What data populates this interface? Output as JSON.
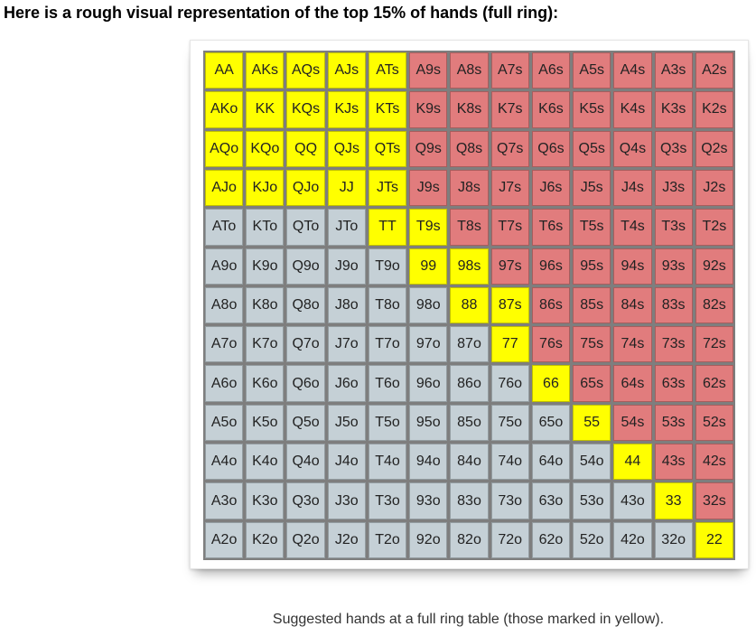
{
  "heading": "Here is a rough visual representation of the top 15% of hands (full ring):",
  "caption": "Suggested hands at a full ring table (those marked in yellow).",
  "colors": {
    "selected": "#ffff00",
    "suited": "#e17c7d",
    "offsuit": "#c5d0d6"
  },
  "rows": [
    {
      "cells": [
        {
          "label": "AA",
          "color": "yellow"
        },
        {
          "label": "AKs",
          "color": "yellow"
        },
        {
          "label": "AQs",
          "color": "yellow"
        },
        {
          "label": "AJs",
          "color": "yellow"
        },
        {
          "label": "ATs",
          "color": "yellow"
        },
        {
          "label": "A9s",
          "color": "pink"
        },
        {
          "label": "A8s",
          "color": "pink"
        },
        {
          "label": "A7s",
          "color": "pink"
        },
        {
          "label": "A6s",
          "color": "pink"
        },
        {
          "label": "A5s",
          "color": "pink"
        },
        {
          "label": "A4s",
          "color": "pink"
        },
        {
          "label": "A3s",
          "color": "pink"
        },
        {
          "label": "A2s",
          "color": "pink"
        }
      ]
    },
    {
      "cells": [
        {
          "label": "AKo",
          "color": "yellow"
        },
        {
          "label": "KK",
          "color": "yellow"
        },
        {
          "label": "KQs",
          "color": "yellow"
        },
        {
          "label": "KJs",
          "color": "yellow"
        },
        {
          "label": "KTs",
          "color": "yellow"
        },
        {
          "label": "K9s",
          "color": "pink"
        },
        {
          "label": "K8s",
          "color": "pink"
        },
        {
          "label": "K7s",
          "color": "pink"
        },
        {
          "label": "K6s",
          "color": "pink"
        },
        {
          "label": "K5s",
          "color": "pink"
        },
        {
          "label": "K4s",
          "color": "pink"
        },
        {
          "label": "K3s",
          "color": "pink"
        },
        {
          "label": "K2s",
          "color": "pink"
        }
      ]
    },
    {
      "cells": [
        {
          "label": "AQo",
          "color": "yellow"
        },
        {
          "label": "KQo",
          "color": "yellow"
        },
        {
          "label": "QQ",
          "color": "yellow"
        },
        {
          "label": "QJs",
          "color": "yellow"
        },
        {
          "label": "QTs",
          "color": "yellow"
        },
        {
          "label": "Q9s",
          "color": "pink"
        },
        {
          "label": "Q8s",
          "color": "pink"
        },
        {
          "label": "Q7s",
          "color": "pink"
        },
        {
          "label": "Q6s",
          "color": "pink"
        },
        {
          "label": "Q5s",
          "color": "pink"
        },
        {
          "label": "Q4s",
          "color": "pink"
        },
        {
          "label": "Q3s",
          "color": "pink"
        },
        {
          "label": "Q2s",
          "color": "pink"
        }
      ]
    },
    {
      "cells": [
        {
          "label": "AJo",
          "color": "yellow"
        },
        {
          "label": "KJo",
          "color": "yellow"
        },
        {
          "label": "QJo",
          "color": "yellow"
        },
        {
          "label": "JJ",
          "color": "yellow"
        },
        {
          "label": "JTs",
          "color": "yellow"
        },
        {
          "label": "J9s",
          "color": "pink"
        },
        {
          "label": "J8s",
          "color": "pink"
        },
        {
          "label": "J7s",
          "color": "pink"
        },
        {
          "label": "J6s",
          "color": "pink"
        },
        {
          "label": "J5s",
          "color": "pink"
        },
        {
          "label": "J4s",
          "color": "pink"
        },
        {
          "label": "J3s",
          "color": "pink"
        },
        {
          "label": "J2s",
          "color": "pink"
        }
      ]
    },
    {
      "cells": [
        {
          "label": "ATo",
          "color": "gray"
        },
        {
          "label": "KTo",
          "color": "gray"
        },
        {
          "label": "QTo",
          "color": "gray"
        },
        {
          "label": "JTo",
          "color": "gray"
        },
        {
          "label": "TT",
          "color": "yellow"
        },
        {
          "label": "T9s",
          "color": "yellow"
        },
        {
          "label": "T8s",
          "color": "pink"
        },
        {
          "label": "T7s",
          "color": "pink"
        },
        {
          "label": "T6s",
          "color": "pink"
        },
        {
          "label": "T5s",
          "color": "pink"
        },
        {
          "label": "T4s",
          "color": "pink"
        },
        {
          "label": "T3s",
          "color": "pink"
        },
        {
          "label": "T2s",
          "color": "pink"
        }
      ]
    },
    {
      "cells": [
        {
          "label": "A9o",
          "color": "gray"
        },
        {
          "label": "K9o",
          "color": "gray"
        },
        {
          "label": "Q9o",
          "color": "gray"
        },
        {
          "label": "J9o",
          "color": "gray"
        },
        {
          "label": "T9o",
          "color": "gray"
        },
        {
          "label": "99",
          "color": "yellow"
        },
        {
          "label": "98s",
          "color": "yellow"
        },
        {
          "label": "97s",
          "color": "pink"
        },
        {
          "label": "96s",
          "color": "pink"
        },
        {
          "label": "95s",
          "color": "pink"
        },
        {
          "label": "94s",
          "color": "pink"
        },
        {
          "label": "93s",
          "color": "pink"
        },
        {
          "label": "92s",
          "color": "pink"
        }
      ]
    },
    {
      "cells": [
        {
          "label": "A8o",
          "color": "gray"
        },
        {
          "label": "K8o",
          "color": "gray"
        },
        {
          "label": "Q8o",
          "color": "gray"
        },
        {
          "label": "J8o",
          "color": "gray"
        },
        {
          "label": "T8o",
          "color": "gray"
        },
        {
          "label": "98o",
          "color": "gray"
        },
        {
          "label": "88",
          "color": "yellow"
        },
        {
          "label": "87s",
          "color": "yellow"
        },
        {
          "label": "86s",
          "color": "pink"
        },
        {
          "label": "85s",
          "color": "pink"
        },
        {
          "label": "84s",
          "color": "pink"
        },
        {
          "label": "83s",
          "color": "pink"
        },
        {
          "label": "82s",
          "color": "pink"
        }
      ]
    },
    {
      "cells": [
        {
          "label": "A7o",
          "color": "gray"
        },
        {
          "label": "K7o",
          "color": "gray"
        },
        {
          "label": "Q7o",
          "color": "gray"
        },
        {
          "label": "J7o",
          "color": "gray"
        },
        {
          "label": "T7o",
          "color": "gray"
        },
        {
          "label": "97o",
          "color": "gray"
        },
        {
          "label": "87o",
          "color": "gray"
        },
        {
          "label": "77",
          "color": "yellow"
        },
        {
          "label": "76s",
          "color": "pink"
        },
        {
          "label": "75s",
          "color": "pink"
        },
        {
          "label": "74s",
          "color": "pink"
        },
        {
          "label": "73s",
          "color": "pink"
        },
        {
          "label": "72s",
          "color": "pink"
        }
      ]
    },
    {
      "cells": [
        {
          "label": "A6o",
          "color": "gray"
        },
        {
          "label": "K6o",
          "color": "gray"
        },
        {
          "label": "Q6o",
          "color": "gray"
        },
        {
          "label": "J6o",
          "color": "gray"
        },
        {
          "label": "T6o",
          "color": "gray"
        },
        {
          "label": "96o",
          "color": "gray"
        },
        {
          "label": "86o",
          "color": "gray"
        },
        {
          "label": "76o",
          "color": "gray"
        },
        {
          "label": "66",
          "color": "yellow"
        },
        {
          "label": "65s",
          "color": "pink"
        },
        {
          "label": "64s",
          "color": "pink"
        },
        {
          "label": "63s",
          "color": "pink"
        },
        {
          "label": "62s",
          "color": "pink"
        }
      ]
    },
    {
      "cells": [
        {
          "label": "A5o",
          "color": "gray"
        },
        {
          "label": "K5o",
          "color": "gray"
        },
        {
          "label": "Q5o",
          "color": "gray"
        },
        {
          "label": "J5o",
          "color": "gray"
        },
        {
          "label": "T5o",
          "color": "gray"
        },
        {
          "label": "95o",
          "color": "gray"
        },
        {
          "label": "85o",
          "color": "gray"
        },
        {
          "label": "75o",
          "color": "gray"
        },
        {
          "label": "65o",
          "color": "gray"
        },
        {
          "label": "55",
          "color": "yellow"
        },
        {
          "label": "54s",
          "color": "pink"
        },
        {
          "label": "53s",
          "color": "pink"
        },
        {
          "label": "52s",
          "color": "pink"
        }
      ]
    },
    {
      "cells": [
        {
          "label": "A4o",
          "color": "gray"
        },
        {
          "label": "K4o",
          "color": "gray"
        },
        {
          "label": "Q4o",
          "color": "gray"
        },
        {
          "label": "J4o",
          "color": "gray"
        },
        {
          "label": "T4o",
          "color": "gray"
        },
        {
          "label": "94o",
          "color": "gray"
        },
        {
          "label": "84o",
          "color": "gray"
        },
        {
          "label": "74o",
          "color": "gray"
        },
        {
          "label": "64o",
          "color": "gray"
        },
        {
          "label": "54o",
          "color": "gray"
        },
        {
          "label": "44",
          "color": "yellow"
        },
        {
          "label": "43s",
          "color": "pink"
        },
        {
          "label": "42s",
          "color": "pink"
        }
      ]
    },
    {
      "cells": [
        {
          "label": "A3o",
          "color": "gray"
        },
        {
          "label": "K3o",
          "color": "gray"
        },
        {
          "label": "Q3o",
          "color": "gray"
        },
        {
          "label": "J3o",
          "color": "gray"
        },
        {
          "label": "T3o",
          "color": "gray"
        },
        {
          "label": "93o",
          "color": "gray"
        },
        {
          "label": "83o",
          "color": "gray"
        },
        {
          "label": "73o",
          "color": "gray"
        },
        {
          "label": "63o",
          "color": "gray"
        },
        {
          "label": "53o",
          "color": "gray"
        },
        {
          "label": "43o",
          "color": "gray"
        },
        {
          "label": "33",
          "color": "yellow"
        },
        {
          "label": "32s",
          "color": "pink"
        }
      ]
    },
    {
      "cells": [
        {
          "label": "A2o",
          "color": "gray"
        },
        {
          "label": "K2o",
          "color": "gray"
        },
        {
          "label": "Q2o",
          "color": "gray"
        },
        {
          "label": "J2o",
          "color": "gray"
        },
        {
          "label": "T2o",
          "color": "gray"
        },
        {
          "label": "92o",
          "color": "gray"
        },
        {
          "label": "82o",
          "color": "gray"
        },
        {
          "label": "72o",
          "color": "gray"
        },
        {
          "label": "62o",
          "color": "gray"
        },
        {
          "label": "52o",
          "color": "gray"
        },
        {
          "label": "42o",
          "color": "gray"
        },
        {
          "label": "32o",
          "color": "gray"
        },
        {
          "label": "22",
          "color": "yellow"
        }
      ]
    }
  ]
}
